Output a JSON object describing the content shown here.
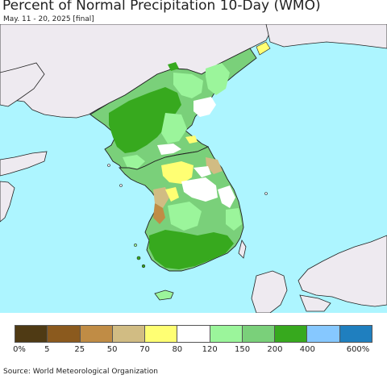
{
  "header": {
    "title": "Percent of Normal Precipitation 10-Day (WMO)",
    "subtitle": "May. 11 - 20, 2025 [final]"
  },
  "legend": {
    "colors": [
      "#4f3a14",
      "#8b5a1e",
      "#c08c45",
      "#d1bc83",
      "#ffff73",
      "#ffffff",
      "#9bf59b",
      "#7ad07a",
      "#37a91e",
      "#86c8ff",
      "#1f7fbf"
    ],
    "tick_labels": [
      "0%",
      "5",
      "25",
      "50",
      "70",
      "80",
      "120",
      "150",
      "200",
      "400",
      "600%"
    ]
  },
  "map": {
    "colors": {
      "sea": "#adf5ff",
      "land_outside": "#eeeaf0",
      "coast": "#222222",
      "dark_green": "#37a91e",
      "mid_green": "#7ad07a",
      "light_green": "#9bf59b",
      "white": "#ffffff",
      "yellow": "#ffff73",
      "tan": "#d1bc83",
      "brown": "#c08c45"
    }
  },
  "footer": {
    "source": "Source: World Meteorological Organization"
  }
}
